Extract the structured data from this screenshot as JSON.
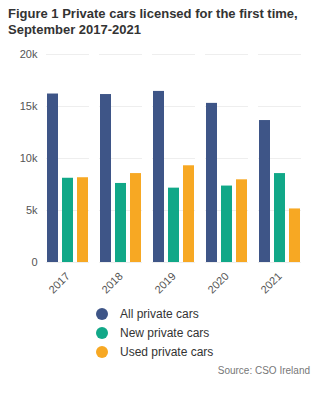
{
  "chart_data": {
    "type": "bar",
    "title": "Figure 1 Private cars licensed for the first time, September 2017-2021",
    "source": "Source: CSO Ireland",
    "categories": [
      "2017",
      "2018",
      "2019",
      "2020",
      "2021"
    ],
    "series": [
      {
        "name": "All private cars",
        "color": "#3e5587",
        "values": [
          16200,
          16150,
          16450,
          15300,
          13650
        ]
      },
      {
        "name": "New private cars",
        "color": "#11a888",
        "values": [
          8100,
          7600,
          7150,
          7350,
          8550
        ]
      },
      {
        "name": "Used private cars",
        "color": "#f7a823",
        "values": [
          8150,
          8550,
          9300,
          7950,
          5150
        ]
      }
    ],
    "ylim": [
      0,
      20000
    ],
    "yticks": [
      0,
      {
        "value": 5000,
        "label": "5k"
      },
      {
        "value": 10000,
        "label": "10k"
      },
      {
        "value": 15000,
        "label": "15k"
      },
      {
        "value": 20000,
        "label": "20k"
      }
    ],
    "grid": true,
    "legend": "bottom"
  }
}
